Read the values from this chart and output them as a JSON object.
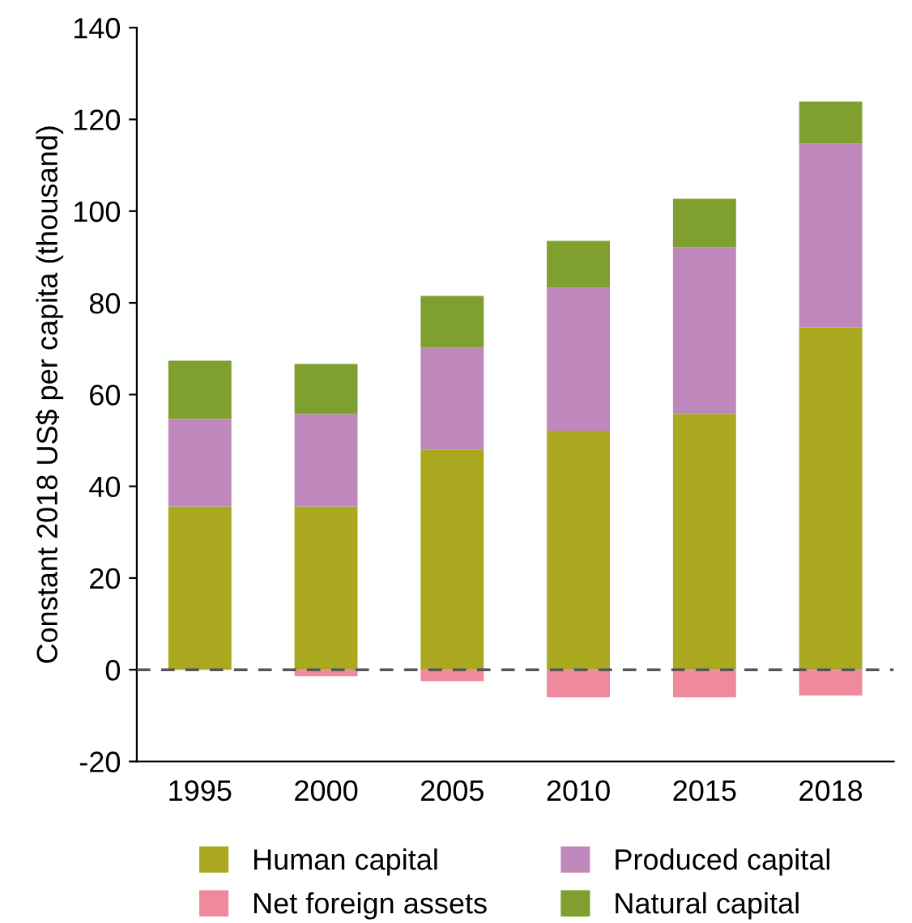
{
  "chart_data": {
    "type": "bar",
    "stacked": true,
    "ylabel": "Constant 2018 US$ per capita (thousand)",
    "categories": [
      "1995",
      "2000",
      "2005",
      "2010",
      "2015",
      "2018"
    ],
    "series": [
      {
        "name": "Human capital",
        "color": "#a9a81e",
        "values": [
          35.6,
          35.6,
          48.0,
          52.1,
          55.8,
          74.6
        ]
      },
      {
        "name": "Produced capital",
        "color": "#be88bc",
        "values": [
          19.1,
          20.2,
          22.2,
          31.2,
          36.3,
          40.1
        ]
      },
      {
        "name": "Net foreign assets",
        "color": "#ee8a9b",
        "values": [
          0,
          -1.4,
          -2.5,
          -6.0,
          -6.0,
          -5.6
        ]
      },
      {
        "name": "Natural capital",
        "color": "#7f9f2f",
        "values": [
          12.7,
          10.9,
          11.3,
          10.2,
          10.6,
          9.2
        ]
      }
    ],
    "ylim": [
      -20,
      140
    ],
    "yticks": [
      -20,
      0,
      20,
      40,
      60,
      80,
      100,
      120,
      140
    ],
    "ref_lines": [
      {
        "axis": "y",
        "value": 0,
        "color": "#555555",
        "line_style": "dashed"
      }
    ],
    "grid": false,
    "legend": "bottom"
  }
}
